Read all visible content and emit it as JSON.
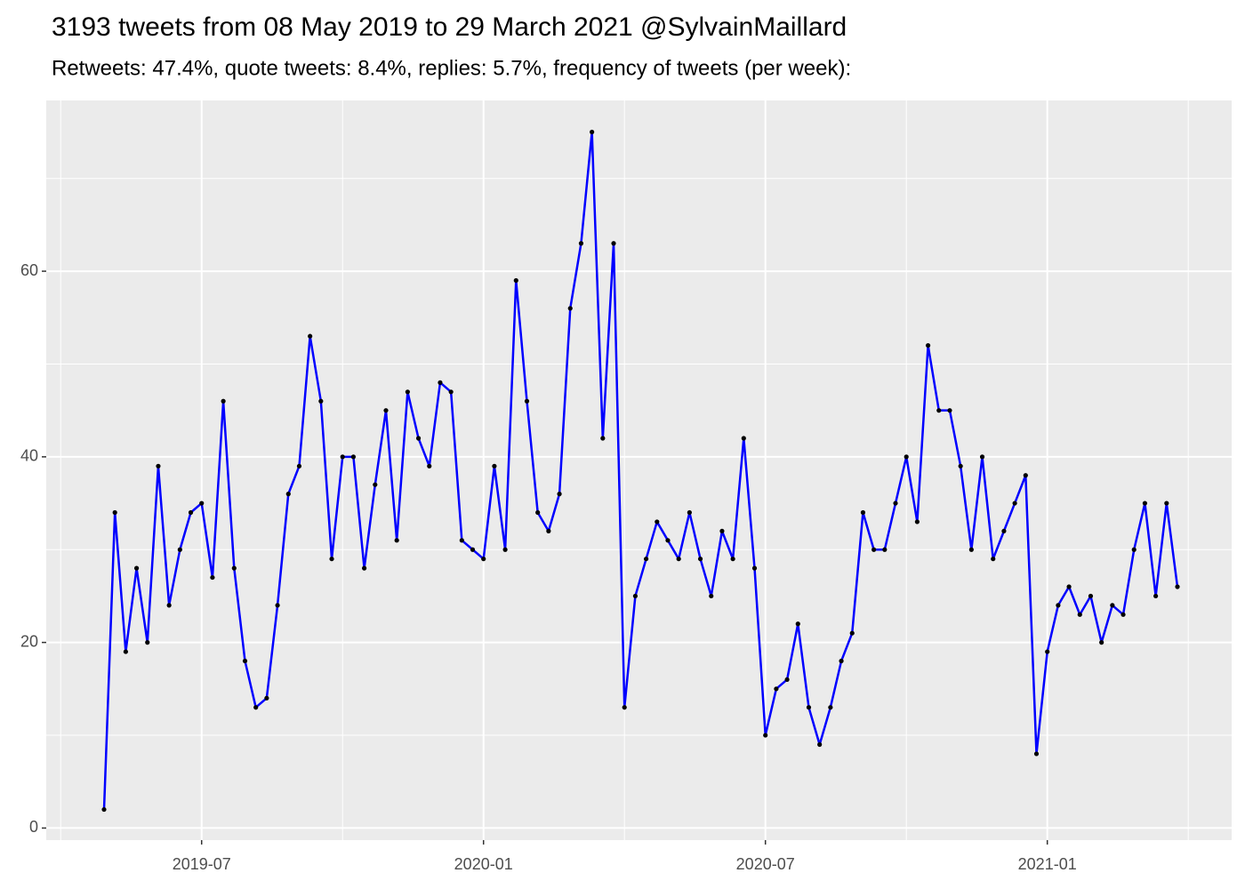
{
  "chart_data": {
    "type": "line",
    "title": "3193 tweets from 08 May 2019 to 29 March 2021 @SylvainMaillard",
    "subtitle": "Retweets: 47.4%, quote tweets: 8.4%, replies: 5.7%, frequency of tweets (per week):",
    "categories": [
      null,
      null,
      null,
      null,
      null,
      null,
      null,
      null,
      null,
      "2019-07",
      null,
      null,
      null,
      null,
      null,
      null,
      null,
      null,
      null,
      null,
      null,
      null,
      null,
      null,
      null,
      null,
      null,
      null,
      null,
      null,
      null,
      null,
      null,
      null,
      null,
      "2020-01",
      null,
      null,
      null,
      null,
      null,
      null,
      null,
      null,
      null,
      null,
      null,
      null,
      null,
      null,
      null,
      null,
      null,
      null,
      null,
      null,
      null,
      null,
      null,
      null,
      null,
      "2020-07",
      null,
      null,
      null,
      null,
      null,
      null,
      null,
      null,
      null,
      null,
      null,
      null,
      null,
      null,
      null,
      null,
      null,
      null,
      null,
      null,
      null,
      null,
      null,
      null,
      null,
      "2021-01",
      null,
      null,
      null,
      null,
      null,
      null,
      null,
      null,
      null,
      null,
      null,
      null
    ],
    "values": [
      2,
      34,
      19,
      28,
      20,
      39,
      24,
      30,
      34,
      35,
      27,
      46,
      28,
      18,
      13,
      14,
      24,
      36,
      39,
      53,
      46,
      29,
      40,
      40,
      28,
      37,
      45,
      31,
      47,
      42,
      39,
      48,
      47,
      31,
      30,
      29,
      39,
      30,
      59,
      46,
      34,
      32,
      36,
      56,
      63,
      75,
      42,
      63,
      13,
      25,
      29,
      33,
      31,
      29,
      34,
      29,
      25,
      32,
      29,
      42,
      28,
      10,
      15,
      16,
      22,
      13,
      9,
      13,
      18,
      21,
      34,
      30,
      30,
      35,
      40,
      33,
      52,
      45,
      45,
      39,
      30,
      40,
      29,
      32,
      35,
      38,
      8,
      19,
      24,
      26,
      23,
      25,
      20,
      24,
      23,
      30,
      35,
      25,
      35,
      26
    ],
    "color": "#0000ff",
    "point_color": "#000000",
    "ylim": [
      -1.3,
      78.4
    ],
    "yticks": [
      0,
      20,
      40,
      60
    ],
    "grid": true
  }
}
